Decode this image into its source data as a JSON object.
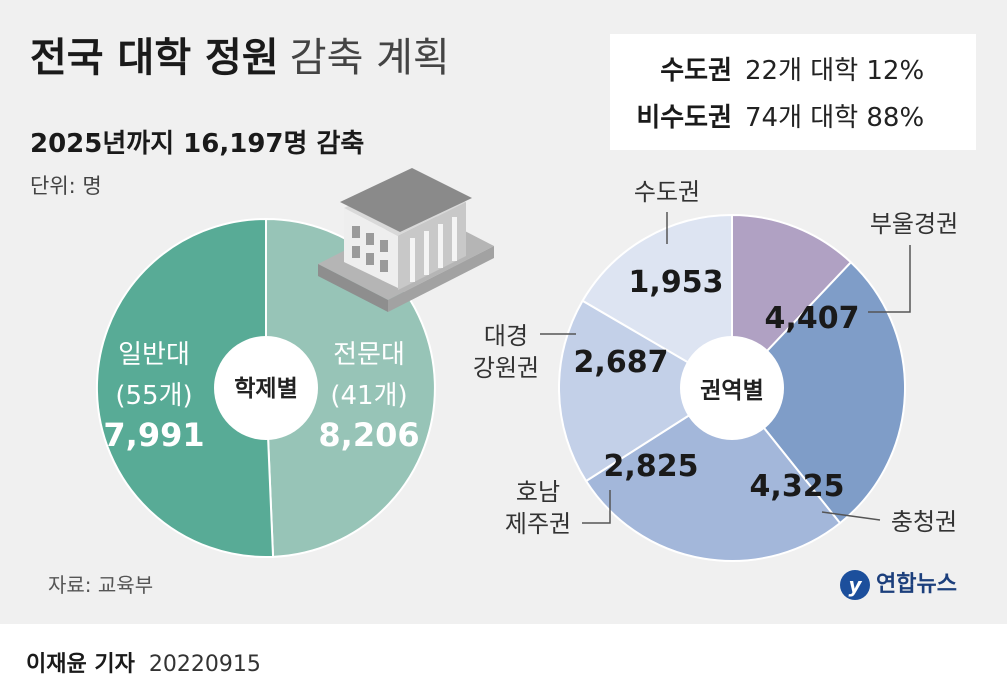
{
  "header": {
    "title_bold": "전국 대학 정원",
    "title_light": "감축 계획",
    "subtitle": "2025년까지 16,197명 감축",
    "unit": "단위: 명"
  },
  "summary": [
    {
      "region": "수도권",
      "detail": "22개 대학 12%"
    },
    {
      "region": "비수도권",
      "detail": "74개 대학 88%"
    }
  ],
  "colors": {
    "general": "#97c4b7",
    "specialized": "#58ab96",
    "busan": "#7f9dc8",
    "chungcheong": "#a3b7da",
    "honam": "#c3d0e8",
    "daegu": "#dde4f2",
    "capital": "#b0a1c3"
  },
  "chart_data": [
    {
      "type": "pie",
      "center_label": "학제별",
      "slices": [
        {
          "name": "일반대",
          "count_label": "(55개)",
          "value": 7991,
          "value_label": "7,991",
          "color": "#97c4b7"
        },
        {
          "name": "전문대",
          "count_label": "(41개)",
          "value": 8206,
          "value_label": "8,206",
          "color": "#58ab96"
        }
      ]
    },
    {
      "type": "pie",
      "center_label": "권역별",
      "slices": [
        {
          "name": "수도권",
          "value": 1953,
          "value_label": "1,953",
          "color": "#b0a1c3"
        },
        {
          "name": "부울경권",
          "value": 4407,
          "value_label": "4,407",
          "color": "#7f9dc8"
        },
        {
          "name": "충청권",
          "value": 4325,
          "value_label": "4,325",
          "color": "#a3b7da"
        },
        {
          "name": "호남 제주권",
          "value": 2825,
          "value_label": "2,825",
          "color": "#c3d0e8"
        },
        {
          "name": "대경 강원권",
          "value": 2687,
          "value_label": "2,687",
          "color": "#dde4f2"
        }
      ]
    }
  ],
  "footer": {
    "source": "자료: 교육부",
    "logo_mark": "y",
    "logo_text": "연합뉴스",
    "reporter": "이재윤 기자",
    "date": "20220915"
  }
}
